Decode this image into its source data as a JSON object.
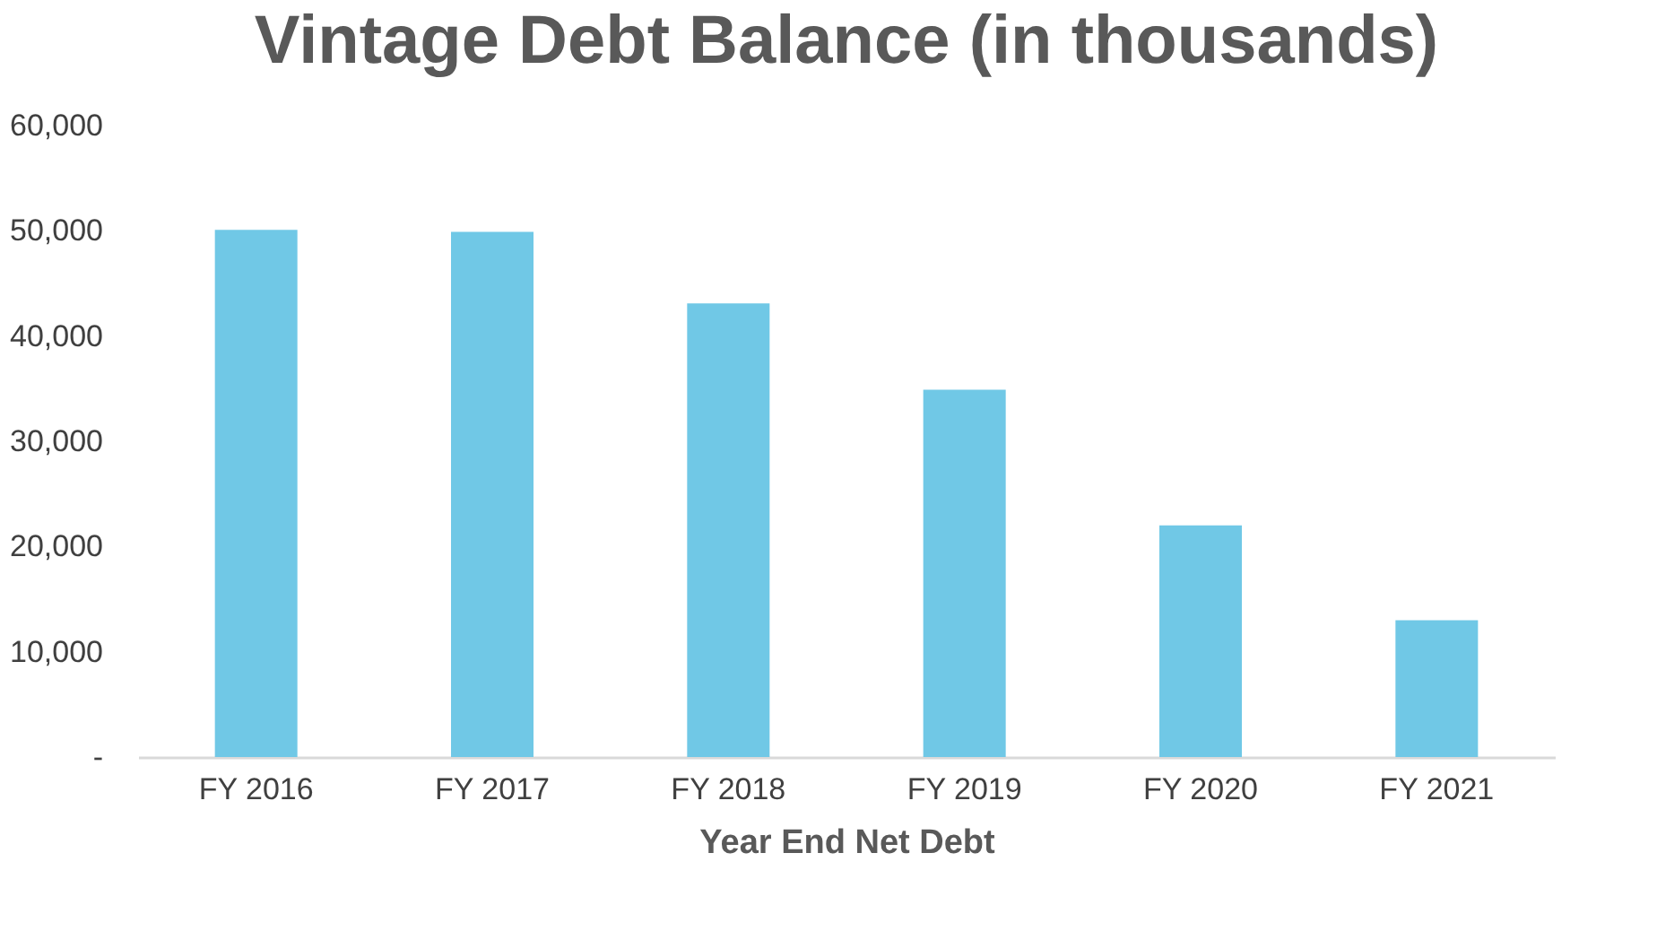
{
  "chart_data": {
    "type": "bar",
    "title": "Vintage Debt Balance (in thousands)",
    "xlabel": "Year End Net Debt",
    "categories": [
      "FY 2016",
      "FY 2017",
      "FY 2018",
      "FY 2019",
      "FY 2020",
      "FY 2021"
    ],
    "values": [
      50100,
      49900,
      43100,
      34900,
      22000,
      13000
    ],
    "color": "#70c8e6",
    "ylim": [
      0,
      60000
    ],
    "yticks": [
      {
        "value": 0,
        "label": "-"
      },
      {
        "value": 10000,
        "label": "10,000"
      },
      {
        "value": 20000,
        "label": "20,000"
      },
      {
        "value": 30000,
        "label": "30,000"
      },
      {
        "value": 40000,
        "label": "40,000"
      },
      {
        "value": 50000,
        "label": "50,000"
      },
      {
        "value": 60000,
        "label": "60,000"
      }
    ],
    "grid": false
  }
}
